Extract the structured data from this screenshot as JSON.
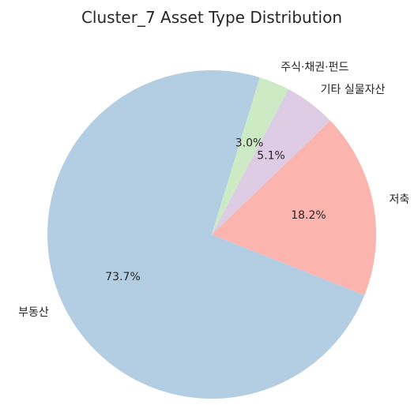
{
  "chart_data": {
    "type": "pie",
    "title": "Cluster_7 Asset Type Distribution",
    "categories": [
      "부동산",
      "저축",
      "기타 실물자산",
      "주식·채권·펀드"
    ],
    "values": [
      73.7,
      18.2,
      5.1,
      3.0
    ],
    "value_labels": [
      "73.7%",
      "18.2%",
      "5.1%",
      "3.0%"
    ],
    "colors": [
      "#b3cde3",
      "#fbb4ae",
      "#decbe4",
      "#ccebc5"
    ],
    "start_angle_deg": 73,
    "direction": "counterclockwise",
    "legend": "none"
  }
}
